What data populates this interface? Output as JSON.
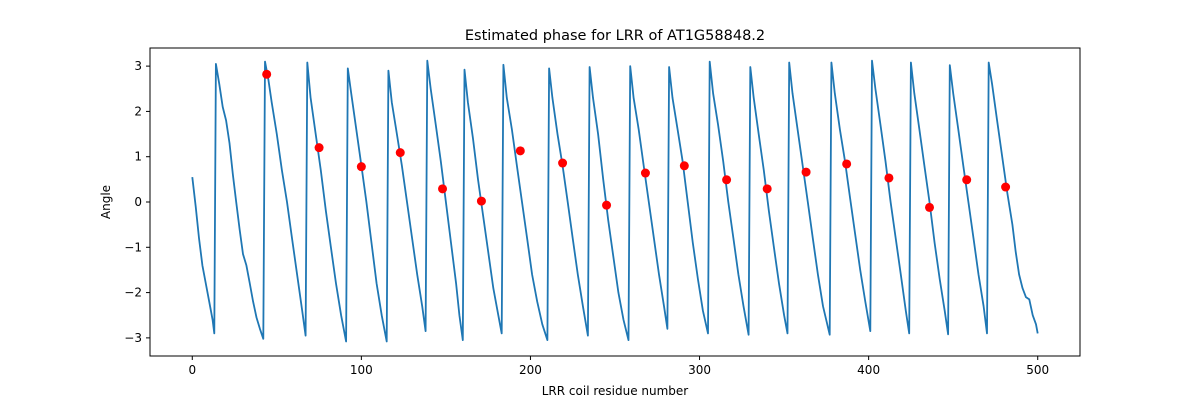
{
  "chart_data": {
    "type": "line",
    "title": "Estimated phase for LRR of AT1G58848.2",
    "xlabel": "LRR coil residue number",
    "ylabel": "Angle",
    "xlim": [
      -25,
      525
    ],
    "ylim": [
      -3.4,
      3.4
    ],
    "xticks": [
      0,
      100,
      200,
      300,
      400,
      500
    ],
    "yticks": [
      -3,
      -2,
      -1,
      0,
      1,
      2,
      3
    ],
    "grid": false,
    "line_color": "#1f77b4",
    "marker_color": "#ff0000",
    "series": [
      {
        "kind": "line",
        "points": [
          [
            0,
            0.55
          ],
          [
            2,
            -0.1
          ],
          [
            4,
            -0.8
          ],
          [
            6,
            -1.4
          ],
          [
            8,
            -1.8
          ],
          [
            10,
            -2.2
          ],
          [
            12,
            -2.6
          ],
          [
            13,
            -2.9
          ],
          [
            14,
            3.05
          ],
          [
            16,
            2.6
          ],
          [
            18,
            2.1
          ],
          [
            20,
            1.8
          ],
          [
            22,
            1.3
          ],
          [
            24,
            0.6
          ],
          [
            26,
            0.0
          ],
          [
            28,
            -0.6
          ],
          [
            30,
            -1.15
          ],
          [
            32,
            -1.4
          ],
          [
            34,
            -1.8
          ],
          [
            36,
            -2.2
          ],
          [
            38,
            -2.55
          ],
          [
            40,
            -2.8
          ],
          [
            42,
            -3.02
          ],
          [
            43,
            3.1
          ],
          [
            45,
            2.7
          ],
          [
            47,
            2.2
          ],
          [
            50,
            1.5
          ],
          [
            53,
            0.7
          ],
          [
            56,
            0.0
          ],
          [
            59,
            -0.8
          ],
          [
            62,
            -1.6
          ],
          [
            65,
            -2.4
          ],
          [
            67,
            -2.95
          ],
          [
            68,
            3.08
          ],
          [
            70,
            2.3
          ],
          [
            73,
            1.5
          ],
          [
            76,
            0.7
          ],
          [
            79,
            -0.2
          ],
          [
            82,
            -1.0
          ],
          [
            85,
            -1.8
          ],
          [
            88,
            -2.5
          ],
          [
            91,
            -3.08
          ],
          [
            92,
            2.95
          ],
          [
            94,
            2.4
          ],
          [
            97,
            1.6
          ],
          [
            100,
            0.8
          ],
          [
            103,
            0.0
          ],
          [
            106,
            -0.9
          ],
          [
            109,
            -1.8
          ],
          [
            112,
            -2.5
          ],
          [
            115,
            -3.08
          ],
          [
            116,
            2.9
          ],
          [
            118,
            2.2
          ],
          [
            121,
            1.5
          ],
          [
            124,
            0.8
          ],
          [
            127,
            0.0
          ],
          [
            130,
            -0.8
          ],
          [
            133,
            -1.6
          ],
          [
            136,
            -2.3
          ],
          [
            138,
            -2.85
          ],
          [
            139,
            3.12
          ],
          [
            141,
            2.5
          ],
          [
            144,
            1.7
          ],
          [
            147,
            0.9
          ],
          [
            150,
            0.0
          ],
          [
            153,
            -0.9
          ],
          [
            156,
            -1.8
          ],
          [
            158,
            -2.5
          ],
          [
            160,
            -3.05
          ],
          [
            161,
            2.92
          ],
          [
            163,
            2.2
          ],
          [
            166,
            1.4
          ],
          [
            169,
            0.5
          ],
          [
            172,
            -0.3
          ],
          [
            175,
            -1.1
          ],
          [
            178,
            -1.9
          ],
          [
            181,
            -2.5
          ],
          [
            183,
            -2.9
          ],
          [
            184,
            3.03
          ],
          [
            186,
            2.3
          ],
          [
            189,
            1.6
          ],
          [
            192,
            0.8
          ],
          [
            195,
            0.0
          ],
          [
            198,
            -0.8
          ],
          [
            201,
            -1.6
          ],
          [
            204,
            -2.2
          ],
          [
            207,
            -2.7
          ],
          [
            210,
            -3.05
          ],
          [
            211,
            2.95
          ],
          [
            213,
            2.3
          ],
          [
            216,
            1.5
          ],
          [
            219,
            0.8
          ],
          [
            222,
            0.0
          ],
          [
            225,
            -0.8
          ],
          [
            228,
            -1.6
          ],
          [
            231,
            -2.3
          ],
          [
            234,
            -2.95
          ],
          [
            235,
            2.98
          ],
          [
            237,
            2.3
          ],
          [
            240,
            1.5
          ],
          [
            243,
            0.5
          ],
          [
            246,
            -0.4
          ],
          [
            249,
            -1.2
          ],
          [
            252,
            -2.0
          ],
          [
            255,
            -2.6
          ],
          [
            258,
            -3.05
          ],
          [
            259,
            3.0
          ],
          [
            261,
            2.3
          ],
          [
            264,
            1.6
          ],
          [
            267,
            0.8
          ],
          [
            270,
            0.0
          ],
          [
            273,
            -0.8
          ],
          [
            276,
            -1.6
          ],
          [
            279,
            -2.3
          ],
          [
            281,
            -2.8
          ],
          [
            282,
            2.98
          ],
          [
            284,
            2.3
          ],
          [
            287,
            1.6
          ],
          [
            290,
            0.9
          ],
          [
            293,
            0.0
          ],
          [
            296,
            -0.9
          ],
          [
            299,
            -1.7
          ],
          [
            302,
            -2.4
          ],
          [
            305,
            -2.9
          ],
          [
            306,
            3.1
          ],
          [
            308,
            2.4
          ],
          [
            311,
            1.7
          ],
          [
            314,
            0.9
          ],
          [
            317,
            0.0
          ],
          [
            320,
            -0.8
          ],
          [
            323,
            -1.6
          ],
          [
            326,
            -2.3
          ],
          [
            329,
            -2.93
          ],
          [
            330,
            2.98
          ],
          [
            332,
            2.3
          ],
          [
            335,
            1.5
          ],
          [
            338,
            0.7
          ],
          [
            341,
            -0.2
          ],
          [
            344,
            -1.0
          ],
          [
            347,
            -1.8
          ],
          [
            350,
            -2.5
          ],
          [
            352,
            -2.9
          ],
          [
            353,
            3.08
          ],
          [
            355,
            2.4
          ],
          [
            358,
            1.6
          ],
          [
            361,
            0.8
          ],
          [
            364,
            0.0
          ],
          [
            367,
            -0.8
          ],
          [
            370,
            -1.6
          ],
          [
            373,
            -2.3
          ],
          [
            377,
            -2.93
          ],
          [
            378,
            3.08
          ],
          [
            380,
            2.4
          ],
          [
            383,
            1.6
          ],
          [
            386,
            0.9
          ],
          [
            389,
            0.1
          ],
          [
            392,
            -0.7
          ],
          [
            395,
            -1.5
          ],
          [
            398,
            -2.2
          ],
          [
            401,
            -2.85
          ],
          [
            402,
            3.12
          ],
          [
            404,
            2.5
          ],
          [
            407,
            1.7
          ],
          [
            410,
            0.9
          ],
          [
            413,
            0.0
          ],
          [
            416,
            -0.8
          ],
          [
            419,
            -1.6
          ],
          [
            422,
            -2.4
          ],
          [
            424,
            -2.9
          ],
          [
            425,
            3.08
          ],
          [
            427,
            2.4
          ],
          [
            430,
            1.6
          ],
          [
            433,
            0.8
          ],
          [
            436,
            0.0
          ],
          [
            439,
            -0.9
          ],
          [
            442,
            -1.7
          ],
          [
            445,
            -2.4
          ],
          [
            447,
            -2.92
          ],
          [
            448,
            3.02
          ],
          [
            450,
            2.4
          ],
          [
            453,
            1.6
          ],
          [
            456,
            0.8
          ],
          [
            459,
            0.0
          ],
          [
            462,
            -0.8
          ],
          [
            465,
            -1.6
          ],
          [
            468,
            -2.3
          ],
          [
            470,
            -2.9
          ],
          [
            471,
            3.08
          ],
          [
            473,
            2.6
          ],
          [
            476,
            1.8
          ],
          [
            479,
            1.0
          ],
          [
            482,
            0.2
          ],
          [
            485,
            -0.5
          ],
          [
            487,
            -1.1
          ],
          [
            489,
            -1.6
          ],
          [
            491,
            -1.9
          ],
          [
            493,
            -2.1
          ],
          [
            495,
            -2.15
          ],
          [
            497,
            -2.5
          ],
          [
            499,
            -2.7
          ],
          [
            500,
            -2.9
          ]
        ]
      },
      {
        "kind": "scatter",
        "points": [
          [
            44,
            2.82
          ],
          [
            75,
            1.2
          ],
          [
            100,
            0.78
          ],
          [
            123,
            1.09
          ],
          [
            148,
            0.29
          ],
          [
            171,
            0.02
          ],
          [
            194,
            1.13
          ],
          [
            219,
            0.86
          ],
          [
            245,
            -0.07
          ],
          [
            268,
            0.64
          ],
          [
            291,
            0.8
          ],
          [
            316,
            0.49
          ],
          [
            340,
            0.29
          ],
          [
            363,
            0.66
          ],
          [
            387,
            0.84
          ],
          [
            412,
            0.53
          ],
          [
            436,
            -0.12
          ],
          [
            458,
            0.49
          ],
          [
            481,
            0.33
          ]
        ]
      }
    ]
  }
}
